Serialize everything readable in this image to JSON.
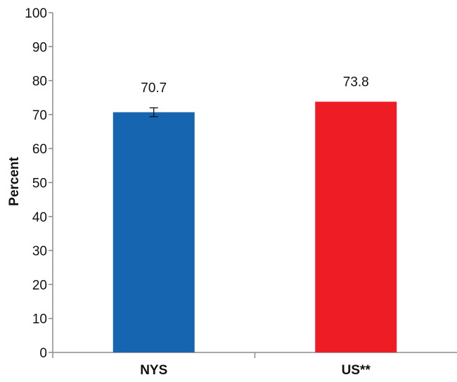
{
  "chart_data": {
    "type": "bar",
    "title": "",
    "xlabel": "",
    "ylabel": "Percent",
    "ylim": [
      0,
      100
    ],
    "yticks": [
      0,
      10,
      20,
      30,
      40,
      50,
      60,
      70,
      80,
      90,
      100
    ],
    "categories": [
      "NYS",
      "US**"
    ],
    "values": [
      70.7,
      73.8
    ],
    "value_labels": [
      "70.7",
      "73.8"
    ],
    "error_bars": [
      {
        "category": "NYS",
        "low": 69.4,
        "high": 72.0
      },
      null
    ],
    "colors": [
      "#1565B0",
      "#EE1C25"
    ],
    "grid": false,
    "legend": "none"
  }
}
